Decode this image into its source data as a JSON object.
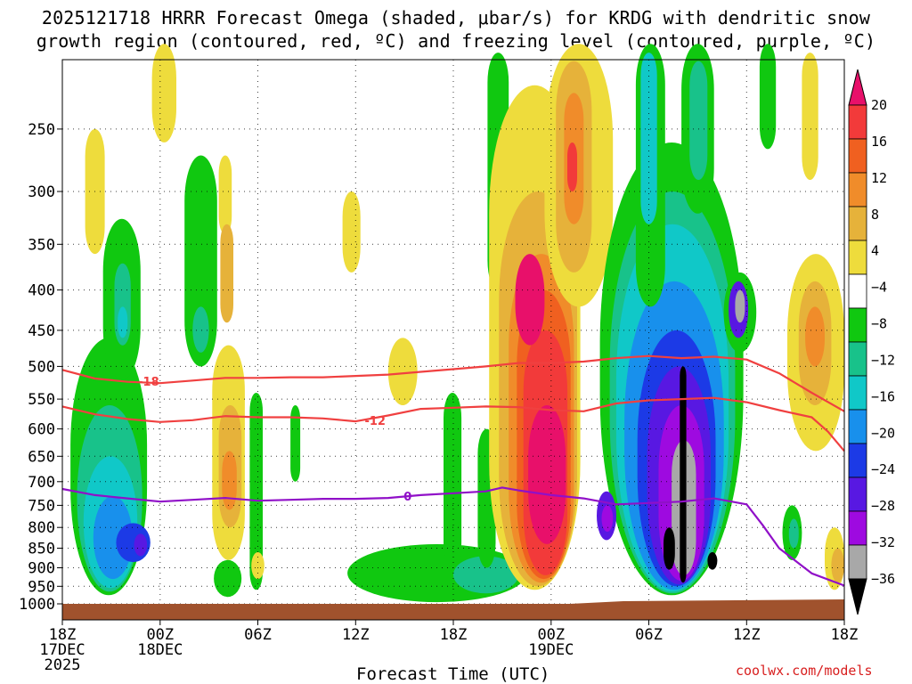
{
  "title_line1": "2025121718 HRRR Forecast Omega (shaded, μbar/s) for KRDG with dendritic snow",
  "title_line2": "growth region (contoured, red, ºC) and freezing level (contoured, purple, ºC)",
  "xlabel": "Forecast Time (UTC)",
  "credit": "coolwx.com/models",
  "chart_data": {
    "type": "heatmap",
    "title": "2025121718 HRRR Forecast Omega (shaded, μbar/s) for KRDG with dendritic snow growth region (contoured, red, ºC) and freezing level (contoured, purple, ºC)",
    "xlabel": "Forecast Time (UTC)",
    "ylabel": "",
    "x_ticks": [
      {
        "hour": 0,
        "lines": [
          "18Z",
          "17DEC",
          "2025"
        ]
      },
      {
        "hour": 6,
        "lines": [
          "00Z",
          "18DEC"
        ]
      },
      {
        "hour": 12,
        "lines": [
          "06Z"
        ]
      },
      {
        "hour": 18,
        "lines": [
          "12Z"
        ]
      },
      {
        "hour": 24,
        "lines": [
          "18Z"
        ]
      },
      {
        "hour": 30,
        "lines": [
          "00Z",
          "19DEC"
        ]
      },
      {
        "hour": 36,
        "lines": [
          "06Z"
        ]
      },
      {
        "hour": 42,
        "lines": [
          "12Z"
        ]
      },
      {
        "hour": 48,
        "lines": [
          "18Z"
        ]
      }
    ],
    "x_range_hours": [
      0,
      48
    ],
    "y_ticks": [
      250,
      300,
      350,
      400,
      450,
      500,
      550,
      600,
      650,
      700,
      750,
      800,
      850,
      900,
      950,
      1000
    ],
    "y_range_hPa": [
      1000,
      200
    ],
    "y_scale": "log-pressure",
    "grid": true,
    "colorbar": {
      "labels": [
        "20",
        "16",
        "12",
        "8",
        "4",
        "−4",
        "−8",
        "−12",
        "−16",
        "−20",
        "−24",
        "−28",
        "−32",
        "−36"
      ],
      "colors": [
        "#e8106a",
        "#f23a3a",
        "#f06020",
        "#f08c2a",
        "#e6b23a",
        "#eedc3c",
        "#ffffff",
        "#10c810",
        "#18c28a",
        "#10c8c8",
        "#1890ec",
        "#1c3ae6",
        "#5818e2",
        "#9e0ae0",
        "#a8a8a8",
        "#000000"
      ]
    },
    "contours": [
      {
        "name": "-18",
        "color": "#f04040",
        "label_hour": 5.3,
        "label_hPa": 522,
        "points": [
          [
            0,
            505
          ],
          [
            2,
            518
          ],
          [
            4,
            523
          ],
          [
            6,
            525
          ],
          [
            8,
            521
          ],
          [
            10,
            517
          ],
          [
            12,
            517
          ],
          [
            14,
            516
          ],
          [
            16,
            516
          ],
          [
            18,
            514
          ],
          [
            20,
            512
          ],
          [
            22,
            508
          ],
          [
            24,
            504
          ],
          [
            26,
            500
          ],
          [
            28,
            495
          ],
          [
            30,
            495
          ],
          [
            32,
            493
          ],
          [
            34,
            488
          ],
          [
            36,
            485
          ],
          [
            38,
            488
          ],
          [
            40,
            486
          ],
          [
            42,
            490
          ],
          [
            44,
            510
          ],
          [
            46,
            540
          ],
          [
            48,
            570
          ]
        ]
      },
      {
        "name": "-12",
        "color": "#f04040",
        "label_hour": 19.2,
        "label_hPa": 585,
        "points": [
          [
            0,
            562
          ],
          [
            2,
            575
          ],
          [
            4,
            583
          ],
          [
            6,
            588
          ],
          [
            8,
            585
          ],
          [
            10,
            578
          ],
          [
            12,
            580
          ],
          [
            14,
            580
          ],
          [
            16,
            582
          ],
          [
            18,
            587
          ],
          [
            20,
            577
          ],
          [
            22,
            566
          ],
          [
            24,
            564
          ],
          [
            26,
            562
          ],
          [
            28,
            563
          ],
          [
            30,
            568
          ],
          [
            32,
            570
          ],
          [
            34,
            557
          ],
          [
            36,
            552
          ],
          [
            38,
            550
          ],
          [
            40,
            548
          ],
          [
            42,
            555
          ],
          [
            44,
            568
          ],
          [
            46,
            580
          ],
          [
            47,
            605
          ],
          [
            48,
            640
          ]
        ]
      },
      {
        "name": "0",
        "color": "#9010c8",
        "label_hour": 21.2,
        "label_hPa": 730,
        "points": [
          [
            0,
            715
          ],
          [
            2,
            728
          ],
          [
            4,
            735
          ],
          [
            6,
            742
          ],
          [
            8,
            738
          ],
          [
            10,
            734
          ],
          [
            12,
            740
          ],
          [
            14,
            738
          ],
          [
            16,
            736
          ],
          [
            18,
            736
          ],
          [
            20,
            734
          ],
          [
            22,
            728
          ],
          [
            24,
            724
          ],
          [
            26,
            720
          ],
          [
            27,
            712
          ],
          [
            28,
            718
          ],
          [
            30,
            728
          ],
          [
            32,
            735
          ],
          [
            34,
            748
          ],
          [
            36,
            745
          ],
          [
            38,
            742
          ],
          [
            40,
            735
          ],
          [
            42,
            748
          ],
          [
            43,
            795
          ],
          [
            44,
            850
          ],
          [
            46,
            915
          ],
          [
            48,
            948
          ]
        ]
      }
    ]
  }
}
